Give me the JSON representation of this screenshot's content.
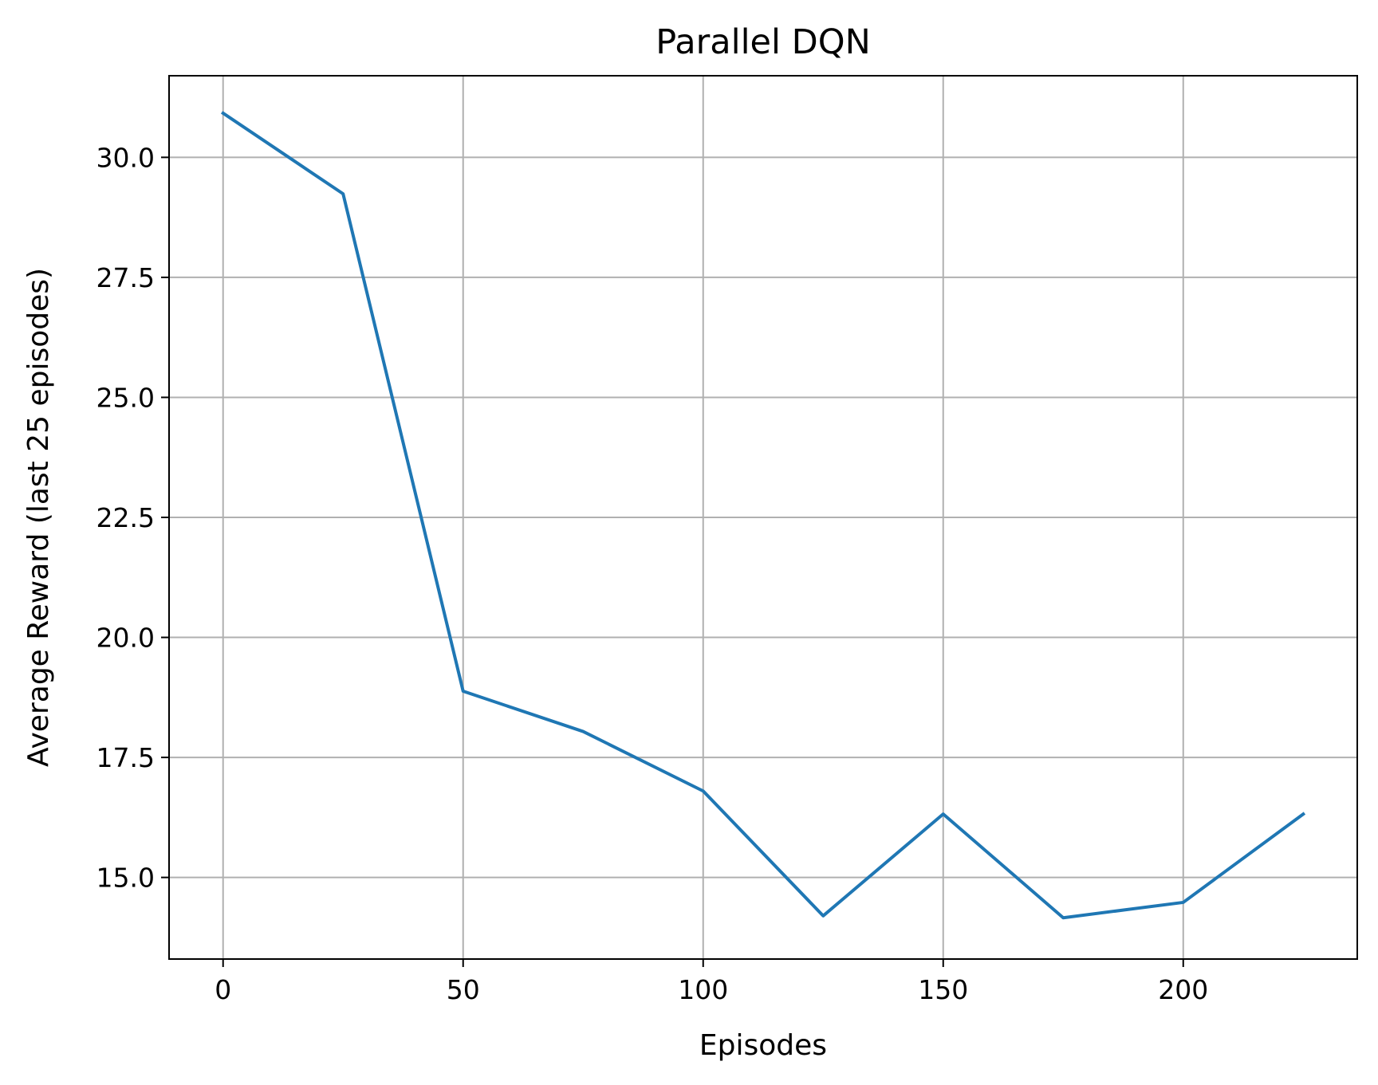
{
  "chart_data": {
    "type": "line",
    "title": "Parallel DQN",
    "xlabel": "Episodes",
    "ylabel": "Average Reward (last 25 episodes)",
    "x": [
      0,
      25,
      50,
      75,
      100,
      125,
      150,
      175,
      200,
      225
    ],
    "series": [
      {
        "values": [
          30.92,
          29.24,
          18.88,
          18.04,
          16.8,
          14.2,
          16.32,
          14.16,
          14.48,
          16.32
        ],
        "color": "#1f77b4"
      }
    ],
    "xlim": [
      -11.25,
      236.25
    ],
    "ylim": [
      13.3,
      31.7
    ],
    "xticks": [
      0,
      50,
      100,
      150,
      200
    ],
    "xtick_labels": [
      "0",
      "50",
      "100",
      "150",
      "200"
    ],
    "yticks": [
      15.0,
      17.5,
      20.0,
      22.5,
      25.0,
      27.5,
      30.0
    ],
    "ytick_labels": [
      "15.0",
      "17.5",
      "20.0",
      "22.5",
      "25.0",
      "27.5",
      "30.0"
    ],
    "grid": true,
    "grid_color": "#b0b0b0",
    "legend": "none"
  }
}
